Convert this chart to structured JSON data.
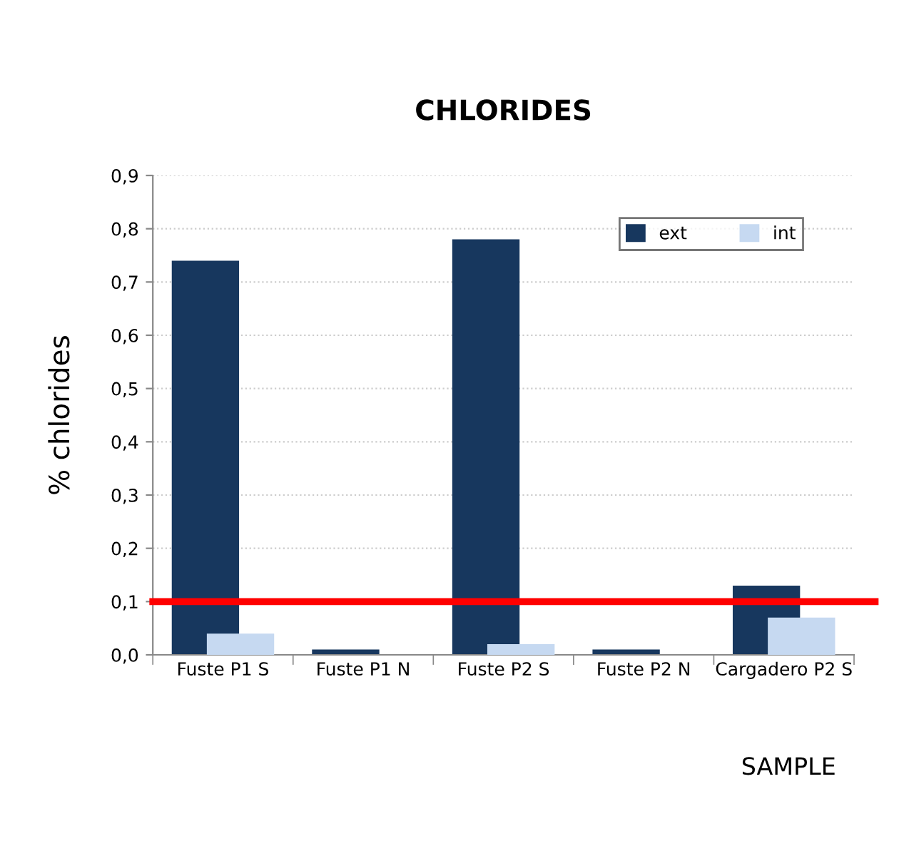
{
  "chart_data": {
    "type": "bar",
    "title": "CHLORIDES",
    "xlabel": "SAMPLE",
    "ylabel": "% chlorides",
    "categories": [
      "Fuste P1 S",
      "Fuste P1 N",
      "Fuste P2 S",
      "Fuste P2 N",
      "Cargadero P2 S"
    ],
    "series": [
      {
        "name": "ext",
        "color": "#17375e",
        "values": [
          0.74,
          0.01,
          0.78,
          0.01,
          0.13
        ]
      },
      {
        "name": "int",
        "color": "#c6d9f1",
        "values": [
          0.04,
          0,
          0.02,
          0,
          0.07
        ]
      }
    ],
    "ylim": [
      0,
      0.9
    ],
    "yticks": [
      {
        "value": 0,
        "label": "0,0"
      },
      {
        "value": 0.1,
        "label": "0,1"
      },
      {
        "value": 0.2,
        "label": "0,2"
      },
      {
        "value": 0.3,
        "label": "0,3"
      },
      {
        "value": 0.4,
        "label": "0,4"
      },
      {
        "value": 0.5,
        "label": "0,5"
      },
      {
        "value": 0.6,
        "label": "0,6"
      },
      {
        "value": 0.7,
        "label": "0,7"
      },
      {
        "value": 0.8,
        "label": "0,8"
      },
      {
        "value": 0.9,
        "label": "0,9"
      }
    ],
    "ref_lines": [
      {
        "axis": "y",
        "value": 0.1,
        "color": "#ff0000"
      }
    ],
    "grid": "y",
    "legend": "top right"
  }
}
